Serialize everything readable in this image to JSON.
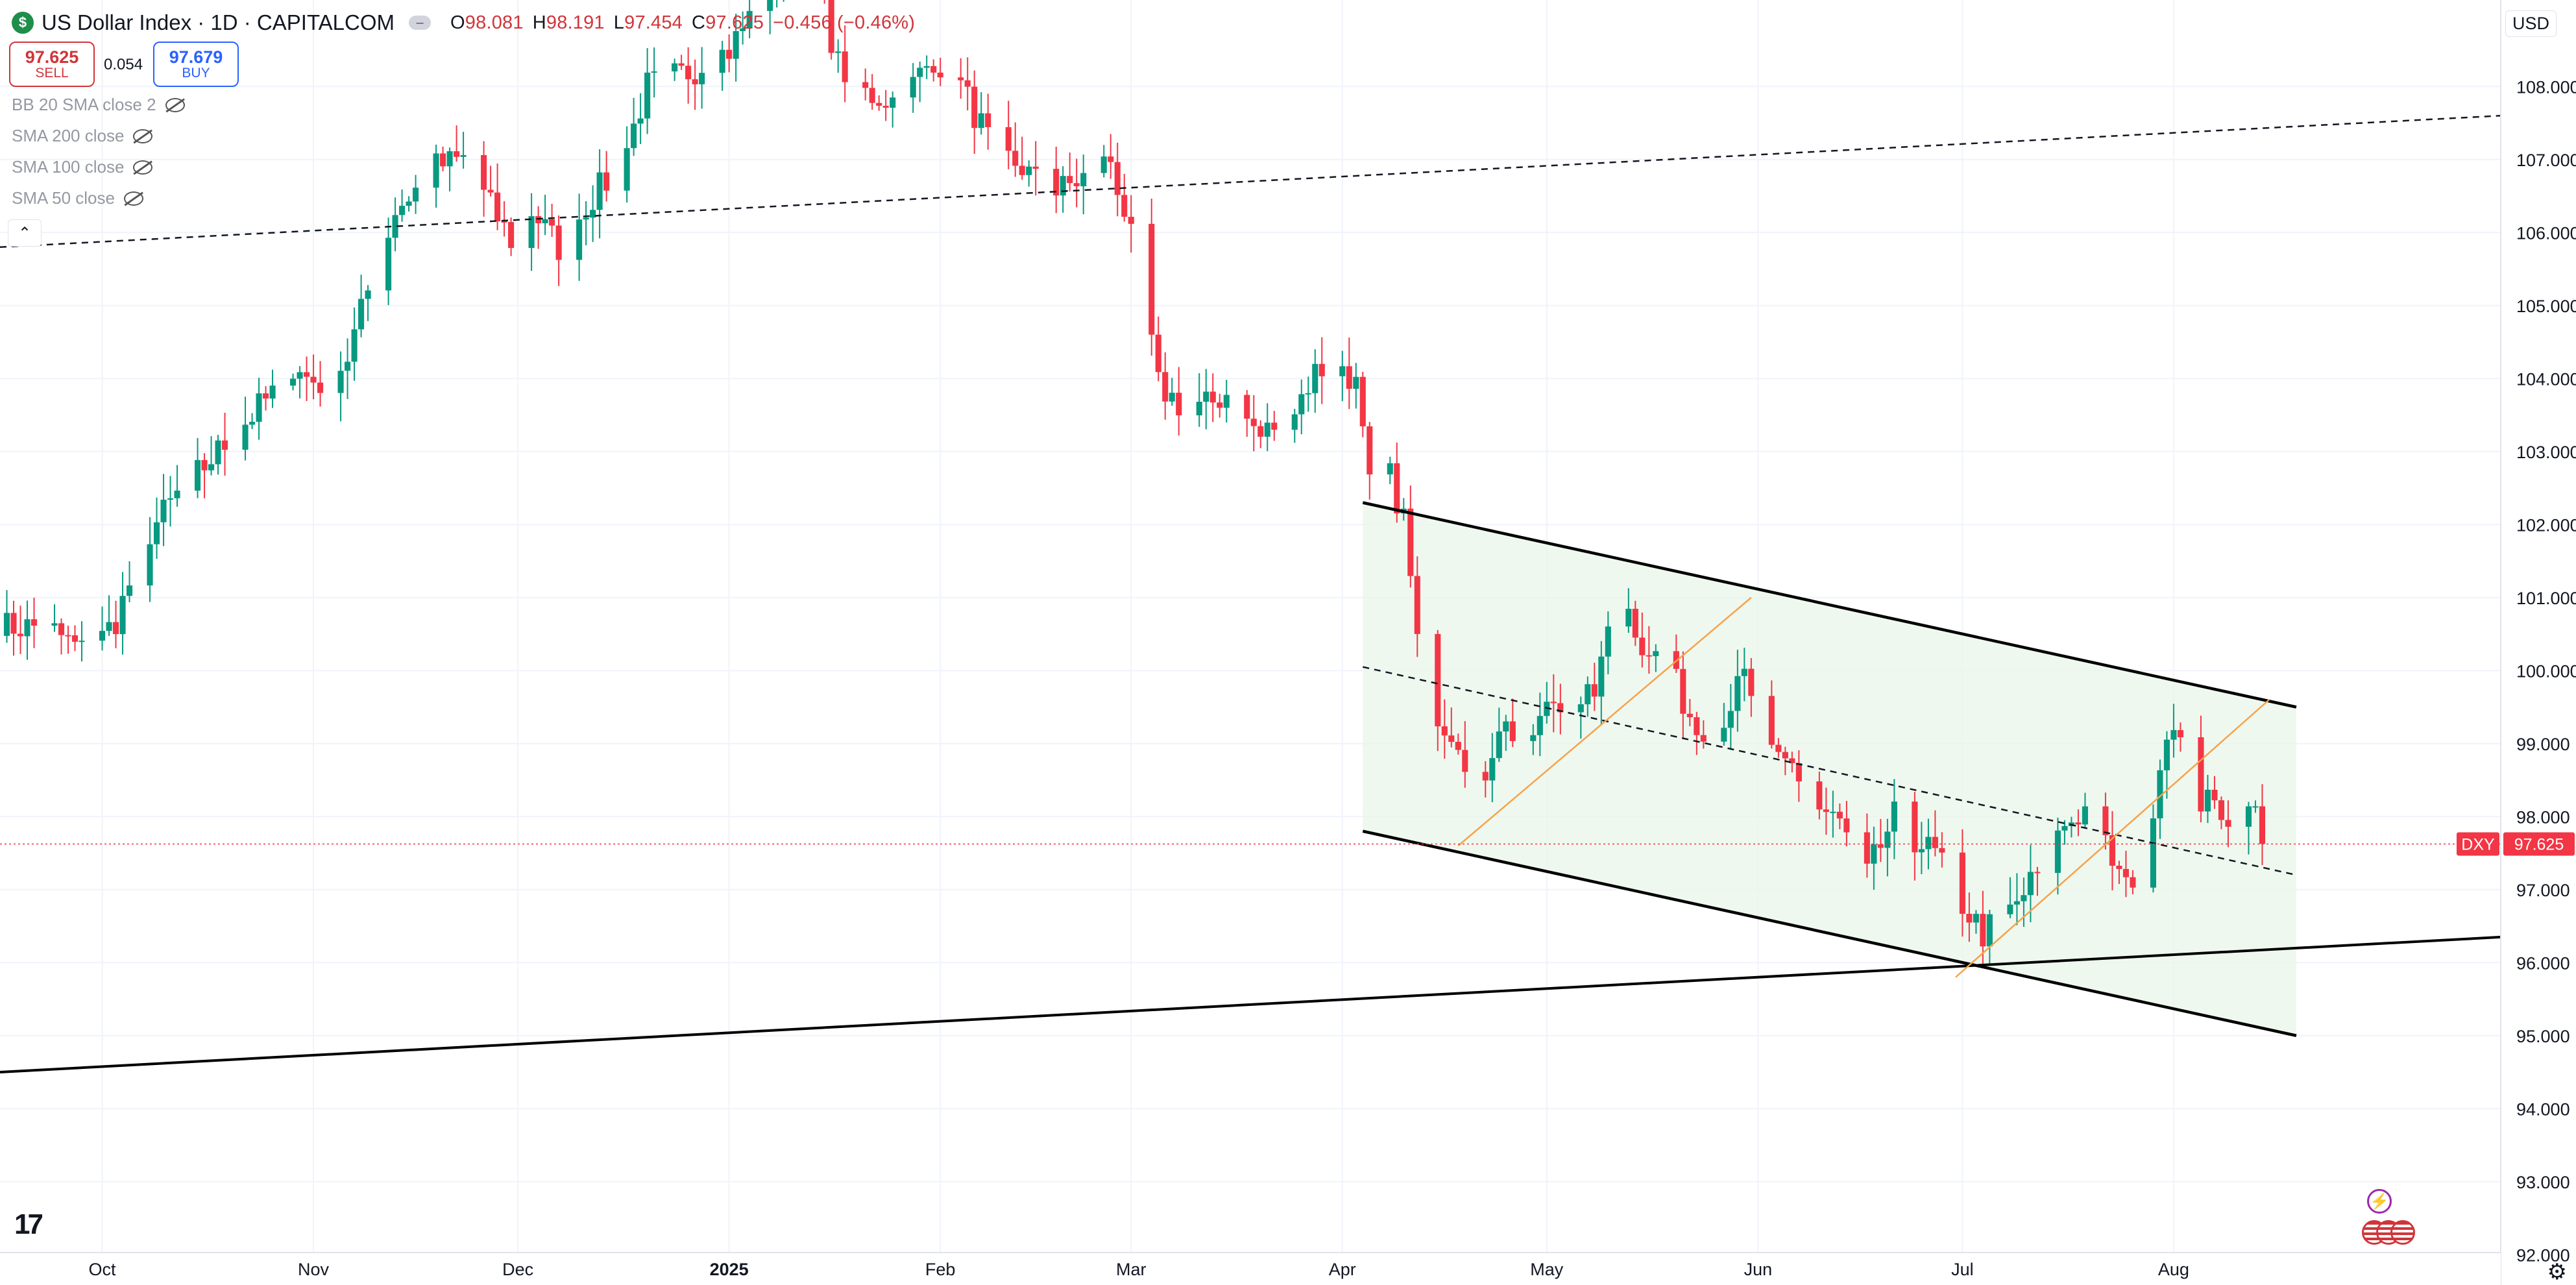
{
  "legend": {
    "badge": "$",
    "title": "US Dollar Index · 1D · CAPITALCOM",
    "ohlc": [
      {
        "k": "O",
        "v": "98.081"
      },
      {
        "k": "H",
        "v": "98.191"
      },
      {
        "k": "L",
        "v": "97.454"
      },
      {
        "k": "C",
        "v": "97.625"
      },
      {
        "k": "",
        "v": "−0.456 (−0.46%)"
      }
    ],
    "sell_price": "97.625",
    "sell_label": "SELL",
    "spread": "0.054",
    "buy_price": "97.679",
    "buy_label": "BUY",
    "indicators": [
      "BB 20 SMA close 2",
      "SMA 200 close",
      "SMA 100 close",
      "SMA 50 close"
    ],
    "collapse_glyph": "⌃"
  },
  "currency": "USD",
  "logo": "17",
  "colors": {
    "up": "#089981",
    "down": "#f23645",
    "channel_fill": "#e9f5e9",
    "price_line": "#f23645",
    "fib_line": "#f7a24a"
  },
  "chart_data": {
    "type": "candlestick",
    "symbol": "DXY",
    "last_price": 97.625,
    "y_axis": {
      "ticks": [
        "108.000",
        "107.000",
        "106.000",
        "105.000",
        "104.000",
        "103.000",
        "102.000",
        "101.000",
        "100.000",
        "99.000",
        "98.000",
        "97.000",
        "96.000",
        "95.000",
        "94.000",
        "93.000",
        "92.000"
      ],
      "range": [
        91.6,
        108.9
      ]
    },
    "x_axis": {
      "labels": [
        {
          "text": "Oct",
          "day": 0,
          "bold": false
        },
        {
          "text": "Nov",
          "day": 31,
          "bold": false
        },
        {
          "text": "Dec",
          "day": 61,
          "bold": false
        },
        {
          "text": "2025",
          "day": 92,
          "bold": true
        },
        {
          "text": "Feb",
          "day": 123,
          "bold": false
        },
        {
          "text": "Mar",
          "day": 151,
          "bold": false
        },
        {
          "text": "Apr",
          "day": 182,
          "bold": false
        },
        {
          "text": "May",
          "day": 212,
          "bold": false
        },
        {
          "text": "Jun",
          "day": 243,
          "bold": false
        },
        {
          "text": "Jul",
          "day": 273,
          "bold": false
        },
        {
          "text": "Aug",
          "day": 304,
          "bold": false
        }
      ],
      "range": [
        -15,
        352
      ]
    },
    "anchors": [
      {
        "d": -15,
        "p": 100.6
      },
      {
        "d": -8,
        "p": 100.6
      },
      {
        "d": -2,
        "p": 100.2
      },
      {
        "d": 2,
        "p": 100.7
      },
      {
        "d": 7,
        "p": 101.9
      },
      {
        "d": 11,
        "p": 102.4
      },
      {
        "d": 16,
        "p": 102.9
      },
      {
        "d": 22,
        "p": 103.5
      },
      {
        "d": 28,
        "p": 104.1
      },
      {
        "d": 33,
        "p": 103.9
      },
      {
        "d": 36,
        "p": 104.3
      },
      {
        "d": 39,
        "p": 105.2
      },
      {
        "d": 43,
        "p": 106.3
      },
      {
        "d": 49,
        "p": 106.9
      },
      {
        "d": 53,
        "p": 107.0
      },
      {
        "d": 56,
        "p": 106.5
      },
      {
        "d": 60,
        "p": 105.9
      },
      {
        "d": 63,
        "p": 106.3
      },
      {
        "d": 67,
        "p": 105.8
      },
      {
        "d": 72,
        "p": 106.5
      },
      {
        "d": 76,
        "p": 106.9
      },
      {
        "d": 80,
        "p": 108.0
      },
      {
        "d": 86,
        "p": 108.2
      },
      {
        "d": 92,
        "p": 108.5
      },
      {
        "d": 96,
        "p": 109.1
      },
      {
        "d": 101,
        "p": 109.7
      },
      {
        "d": 104,
        "p": 109.8
      },
      {
        "d": 108,
        "p": 108.3
      },
      {
        "d": 112,
        "p": 107.9
      },
      {
        "d": 117,
        "p": 107.8
      },
      {
        "d": 122,
        "p": 108.4
      },
      {
        "d": 126,
        "p": 108.0
      },
      {
        "d": 131,
        "p": 107.1
      },
      {
        "d": 135,
        "p": 106.9
      },
      {
        "d": 139,
        "p": 106.5
      },
      {
        "d": 143,
        "p": 106.7
      },
      {
        "d": 148,
        "p": 107.0
      },
      {
        "d": 150,
        "p": 106.3
      },
      {
        "d": 152,
        "p": 105.5
      },
      {
        "d": 155,
        "p": 103.9
      },
      {
        "d": 160,
        "p": 103.5
      },
      {
        "d": 165,
        "p": 103.8
      },
      {
        "d": 170,
        "p": 103.2
      },
      {
        "d": 175,
        "p": 103.6
      },
      {
        "d": 178,
        "p": 104.1
      },
      {
        "d": 182,
        "p": 104.2
      },
      {
        "d": 184,
        "p": 103.9
      },
      {
        "d": 186,
        "p": 102.5
      },
      {
        "d": 188,
        "p": 102.9
      },
      {
        "d": 191,
        "p": 102.1
      },
      {
        "d": 193,
        "p": 100.4
      },
      {
        "d": 196,
        "p": 99.4
      },
      {
        "d": 199,
        "p": 99.1
      },
      {
        "d": 202,
        "p": 98.3
      },
      {
        "d": 205,
        "p": 99.3
      },
      {
        "d": 209,
        "p": 99.0
      },
      {
        "d": 213,
        "p": 99.6
      },
      {
        "d": 216,
        "p": 99.2
      },
      {
        "d": 220,
        "p": 100.0
      },
      {
        "d": 222,
        "p": 101.2
      },
      {
        "d": 226,
        "p": 100.4
      },
      {
        "d": 230,
        "p": 100.0
      },
      {
        "d": 234,
        "p": 99.2
      },
      {
        "d": 238,
        "p": 99.4
      },
      {
        "d": 241,
        "p": 99.9
      },
      {
        "d": 244,
        "p": 98.8
      },
      {
        "d": 248,
        "p": 98.7
      },
      {
        "d": 252,
        "p": 98.1
      },
      {
        "d": 255,
        "p": 97.9
      },
      {
        "d": 259,
        "p": 97.2
      },
      {
        "d": 263,
        "p": 98.0
      },
      {
        "d": 266,
        "p": 97.7
      },
      {
        "d": 270,
        "p": 97.4
      },
      {
        "d": 273,
        "p": 96.8
      },
      {
        "d": 276,
        "p": 96.4
      },
      {
        "d": 280,
        "p": 96.7
      },
      {
        "d": 284,
        "p": 97.2
      },
      {
        "d": 288,
        "p": 97.9
      },
      {
        "d": 291,
        "p": 98.1
      },
      {
        "d": 294,
        "p": 97.6
      },
      {
        "d": 297,
        "p": 97.0
      },
      {
        "d": 300,
        "p": 97.6
      },
      {
        "d": 302,
        "p": 98.8
      },
      {
        "d": 304,
        "p": 99.4
      },
      {
        "d": 306,
        "p": 98.6
      },
      {
        "d": 308,
        "p": 98.2
      },
      {
        "d": 311,
        "p": 98.1
      },
      {
        "d": 314,
        "p": 97.9
      },
      {
        "d": 316,
        "p": 98.1
      },
      {
        "d": 317,
        "p": 97.625
      }
    ],
    "overlays": {
      "channel_upper": [
        {
          "d": 185,
          "p": 102.3
        },
        {
          "d": 322,
          "p": 99.5
        }
      ],
      "channel_lower": [
        {
          "d": 185,
          "p": 97.8
        },
        {
          "d": 322,
          "p": 95.0
        }
      ],
      "channel_mid": [
        {
          "d": 185,
          "p": 100.05
        },
        {
          "d": 322,
          "p": 97.2
        }
      ],
      "long_support": [
        {
          "d": -15,
          "p": 94.5
        },
        {
          "d": 352,
          "p": 96.35
        }
      ],
      "long_resistance": [
        {
          "d": -15,
          "p": 105.8
        },
        {
          "d": 352,
          "p": 107.6
        }
      ],
      "orange_1": [
        {
          "d": 199,
          "p": 97.6
        },
        {
          "d": 242,
          "p": 101.0
        }
      ],
      "orange_2": [
        {
          "d": 272,
          "p": 95.8
        },
        {
          "d": 318,
          "p": 99.6
        }
      ]
    }
  }
}
